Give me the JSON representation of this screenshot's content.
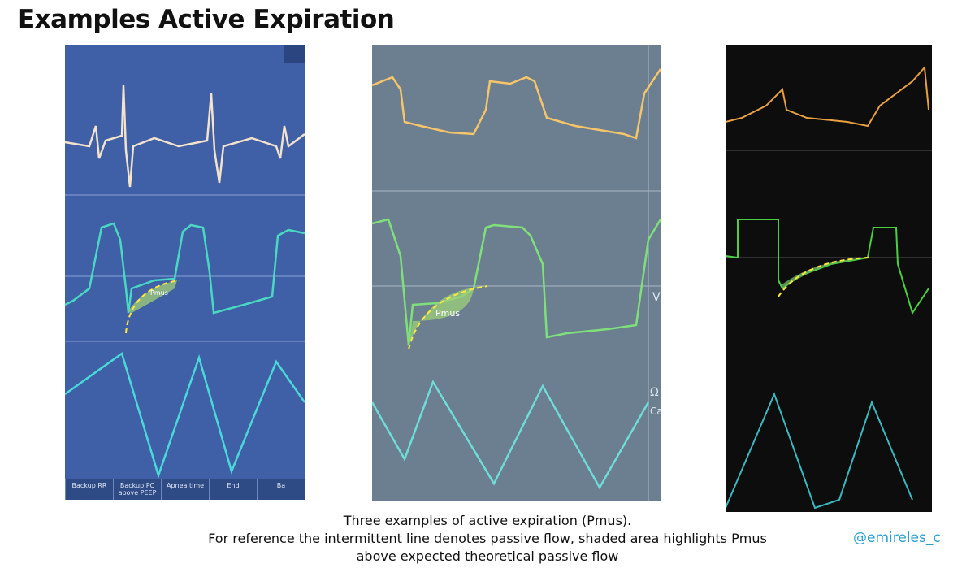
{
  "header": {
    "title": "Examples Active Expiration"
  },
  "panels": [
    {
      "annotation": "Pmus",
      "buttons": [
        "Backup RR",
        "Backup PC above PEEP",
        "Apnea time",
        "End",
        "Ba"
      ]
    },
    {
      "annotation": "Pmus",
      "side_labels": [
        "V",
        "Ω",
        "Ca"
      ]
    }
  ],
  "caption": {
    "lines": [
      "Three examples of active expiration (Pmus).",
      "For reference the intermittent line denotes passive flow, shaded area highlights Pmus",
      "above expected theoretical passive flow"
    ]
  },
  "handle": "@emireles_c"
}
